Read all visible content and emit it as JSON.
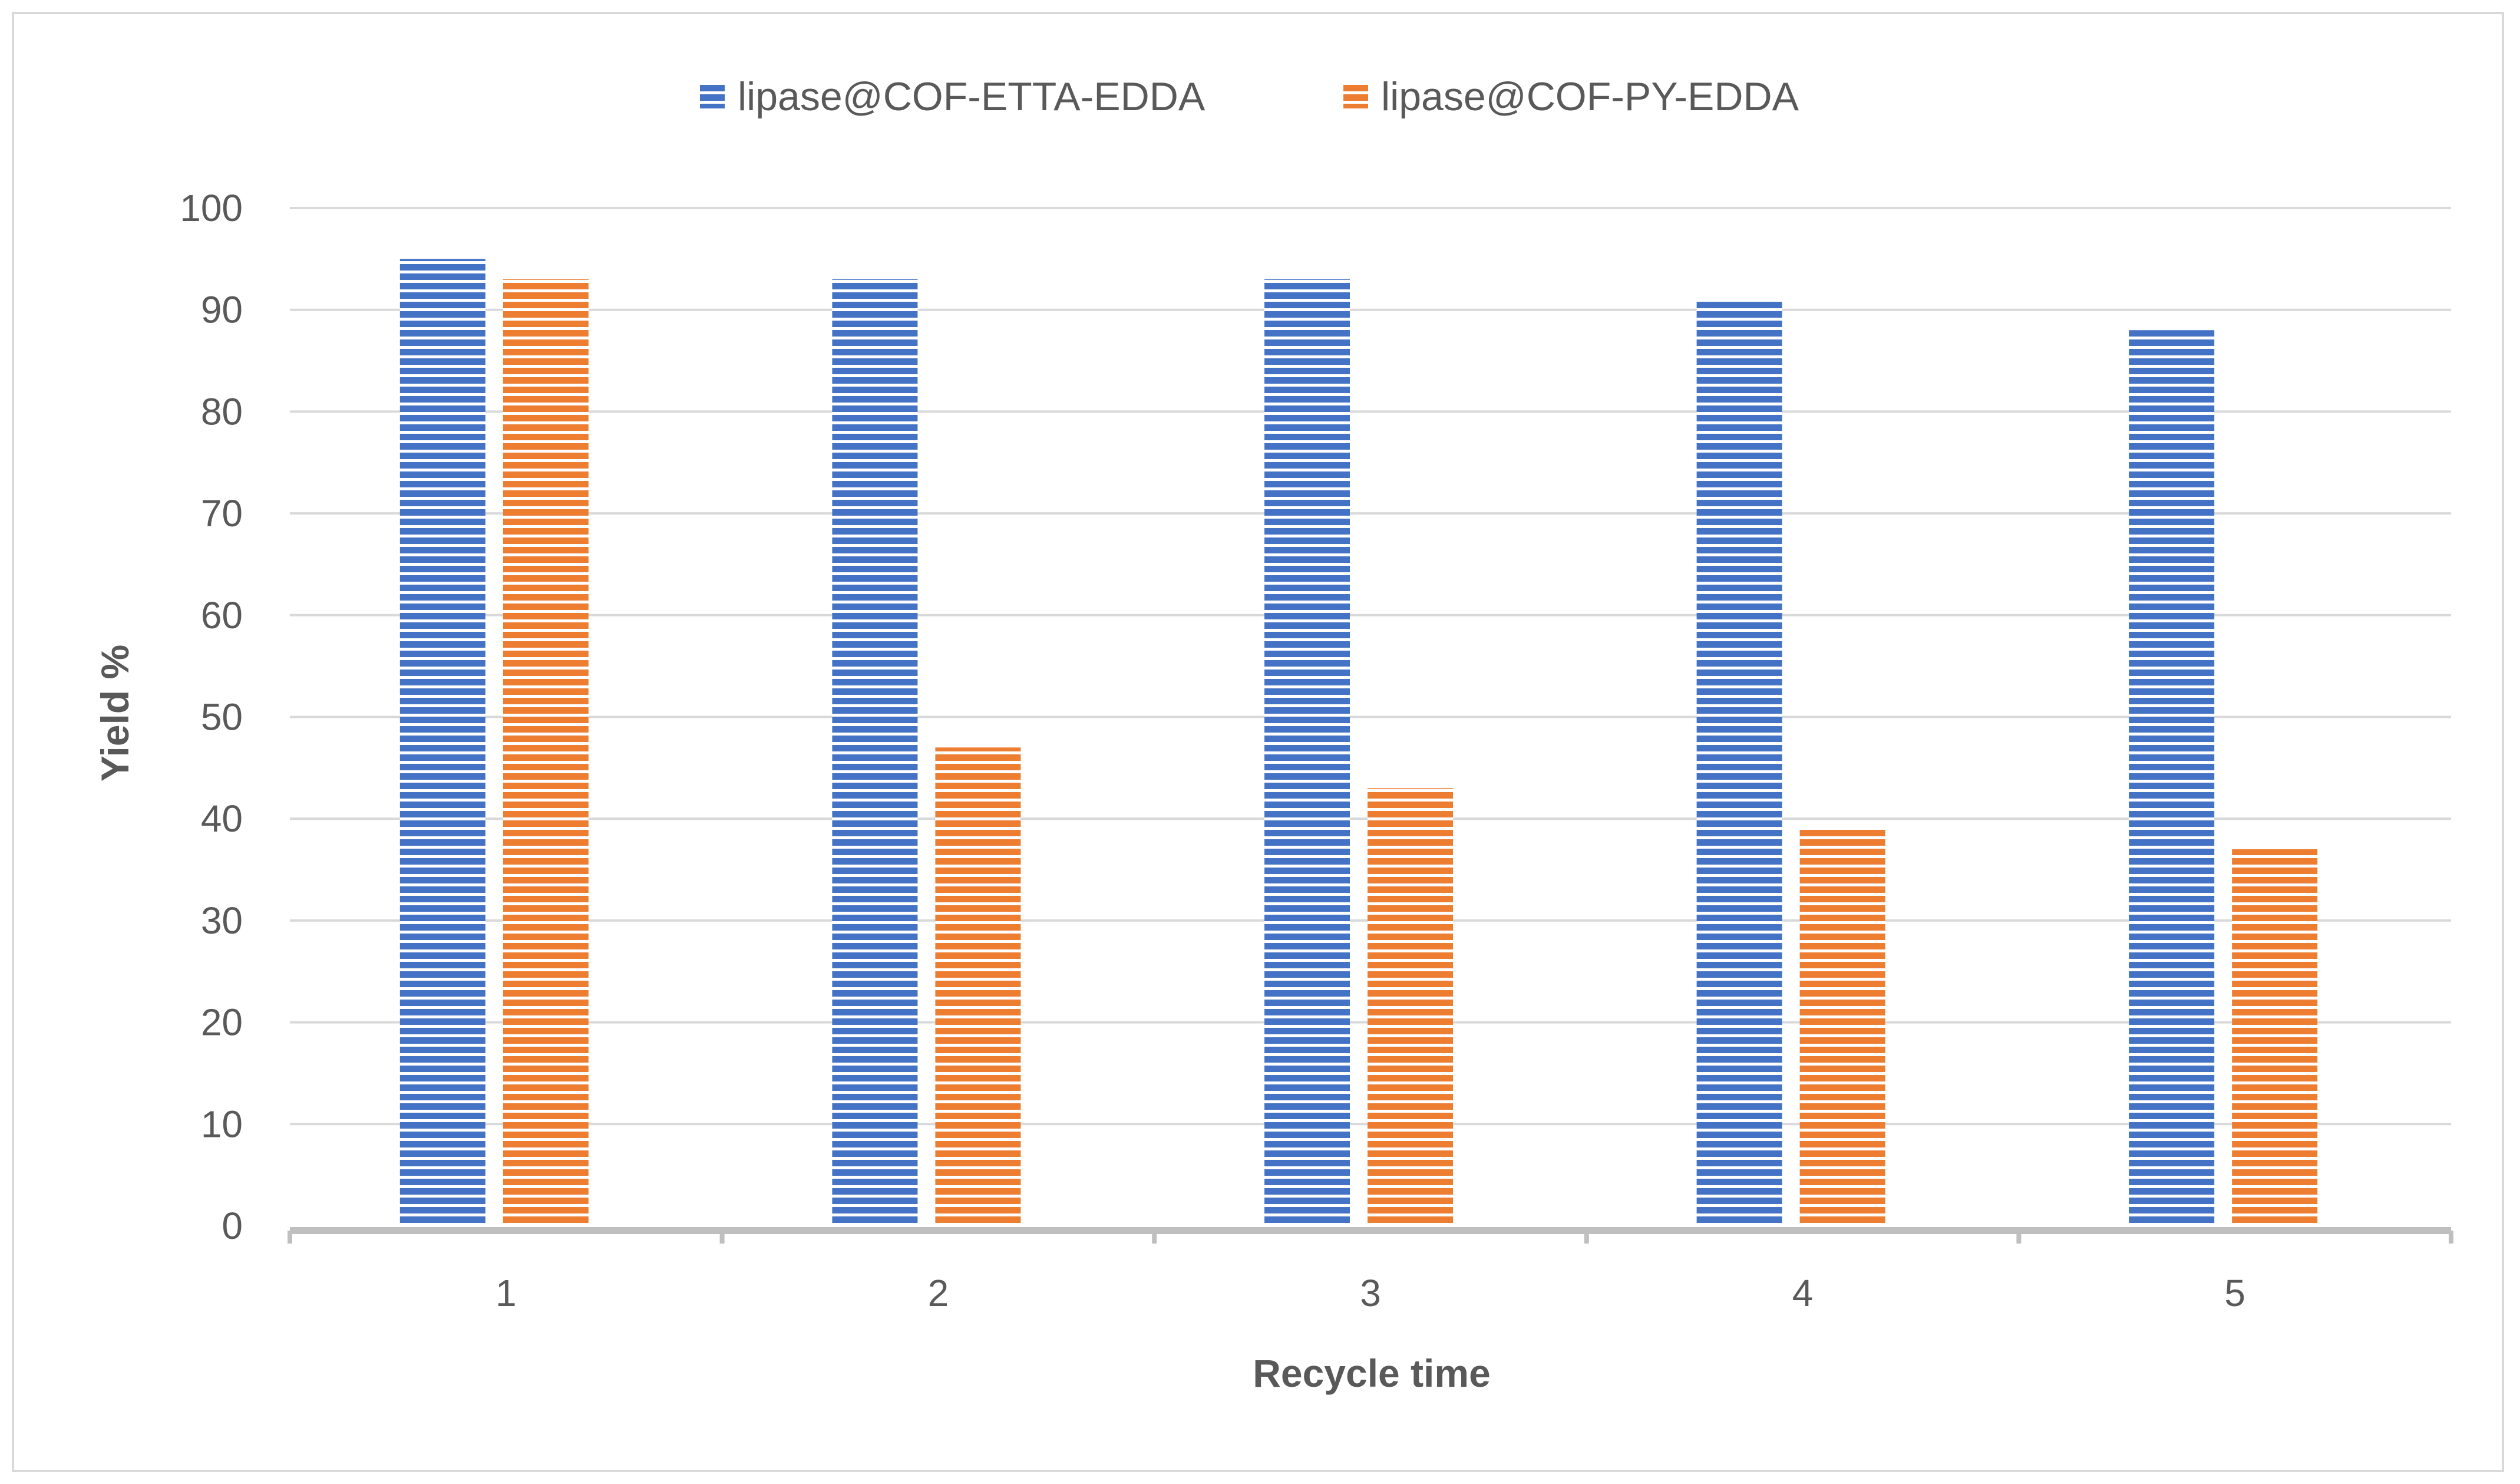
{
  "chart_data": {
    "type": "bar",
    "title": "",
    "xlabel": "Recycle time",
    "ylabel": "Yield %",
    "categories": [
      "1",
      "2",
      "3",
      "4",
      "5"
    ],
    "series": [
      {
        "name": "lipase@COF-ETTA-EDDA",
        "values": [
          95,
          93,
          93,
          91,
          88
        ],
        "color": "#4472c4"
      },
      {
        "name": "lipase@COF-PY-EDDA",
        "values": [
          93,
          47,
          43,
          39,
          37
        ],
        "color": "#ed7d31"
      }
    ],
    "ylim": [
      0,
      100
    ],
    "yticks": [
      0,
      10,
      20,
      30,
      40,
      50,
      60,
      70,
      80,
      90,
      100
    ],
    "grid": true,
    "legend_position": "top-center",
    "bar_pattern": "horizontal-stripes"
  }
}
